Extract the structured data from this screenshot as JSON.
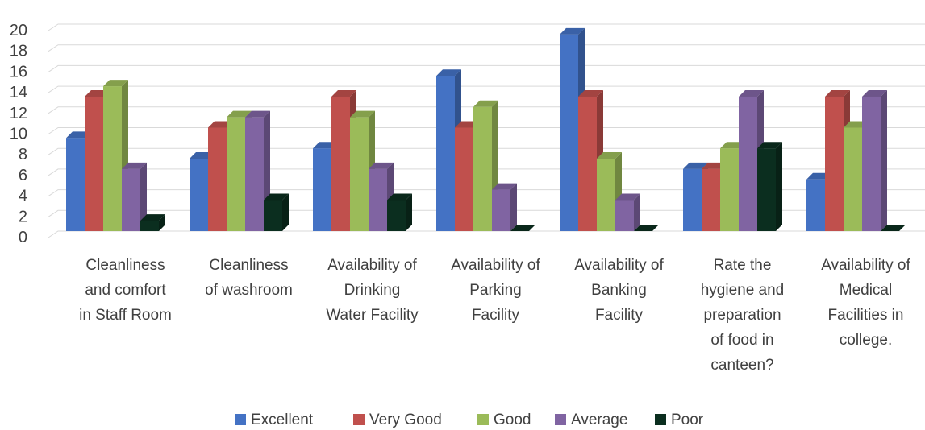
{
  "chart_data": {
    "type": "bar",
    "title": "",
    "xlabel": "",
    "ylabel": "",
    "ylim": [
      0,
      20
    ],
    "yticks": [
      0,
      2,
      4,
      6,
      8,
      10,
      12,
      14,
      16,
      18,
      20
    ],
    "grid": true,
    "legend_position": "bottom",
    "style": "3d-clustered-column",
    "categories": [
      [
        "Cleanliness",
        "and comfort",
        "in Staff Room"
      ],
      [
        "Cleanliness",
        "of washroom"
      ],
      [
        "Availability of",
        "Drinking",
        "Water Facility"
      ],
      [
        "Availability of",
        "Parking",
        "Facility"
      ],
      [
        "Availability of",
        "Banking",
        "Facility"
      ],
      [
        "Rate the",
        "hygiene and",
        "preparation",
        "of food in",
        "canteen?"
      ],
      [
        "Availability of",
        "Medical",
        "Facilities in",
        "college."
      ]
    ],
    "series": [
      {
        "name": "Excellent",
        "color": "#4472C4",
        "values": [
          9,
          7,
          8,
          15,
          19,
          6,
          5
        ]
      },
      {
        "name": "Very Good",
        "color": "#C0504D",
        "values": [
          13,
          10,
          13,
          10,
          13,
          6,
          13
        ]
      },
      {
        "name": "Good",
        "color": "#9BBB59",
        "values": [
          14,
          11,
          11,
          12,
          7,
          8,
          10
        ]
      },
      {
        "name": "Average",
        "color": "#8064A2",
        "values": [
          6,
          11,
          6,
          4,
          3,
          13,
          13
        ]
      },
      {
        "name": "Poor",
        "color": "#0B2E1F",
        "values": [
          1,
          3,
          3,
          0,
          0,
          8,
          0
        ]
      }
    ]
  }
}
